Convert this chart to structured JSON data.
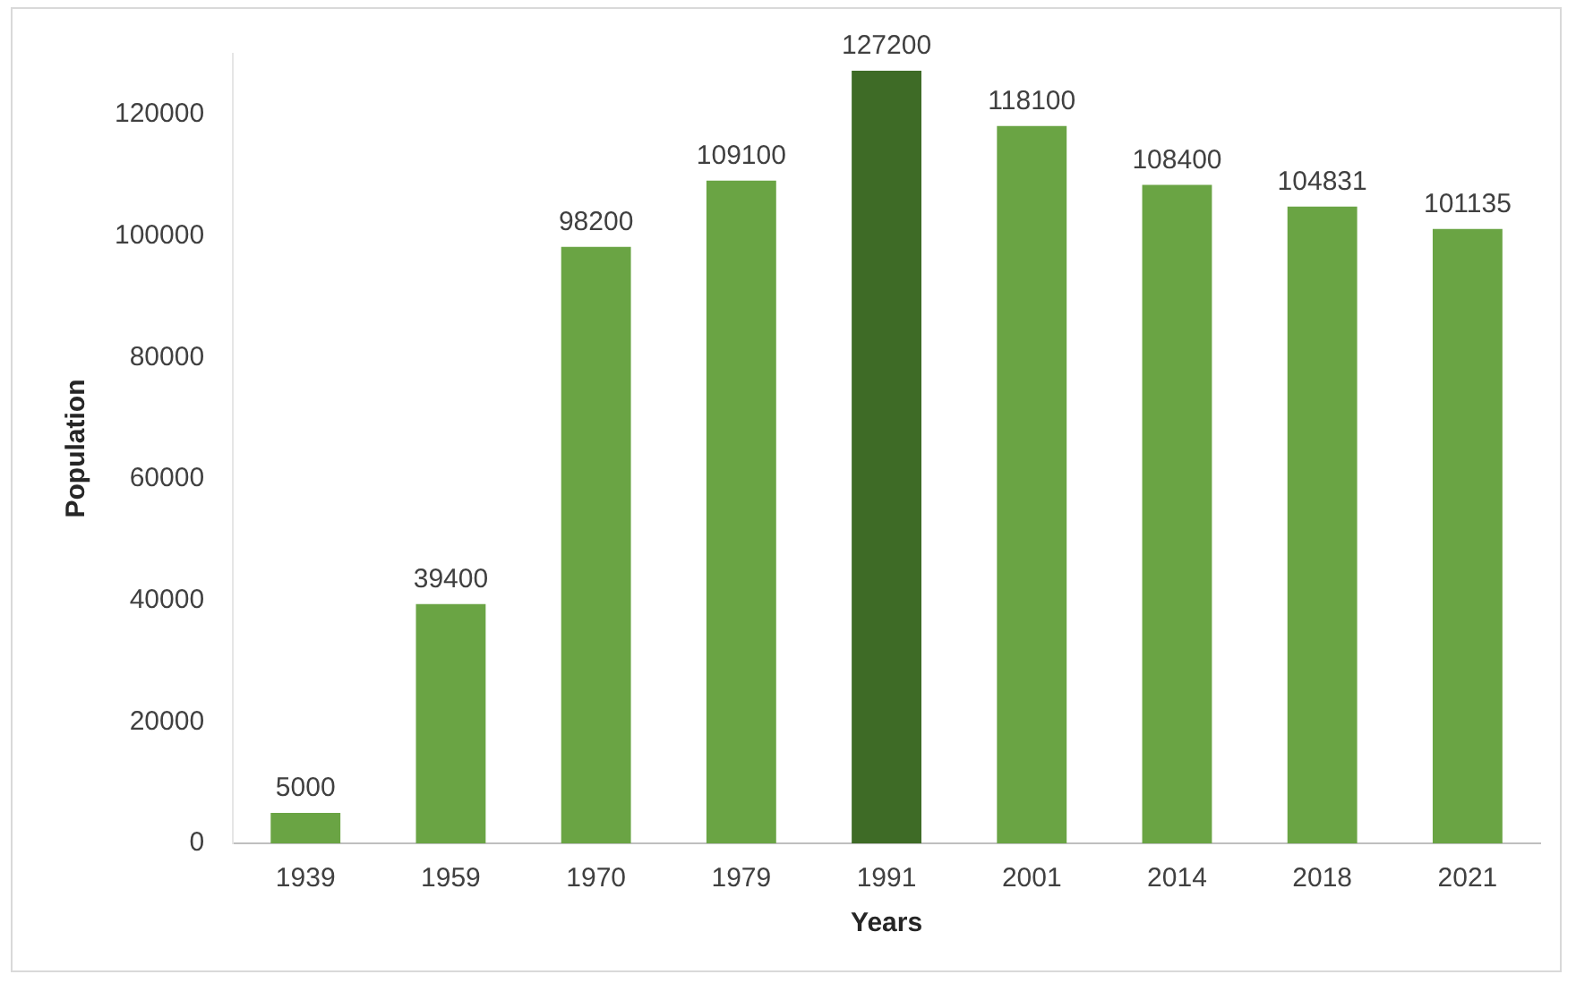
{
  "chart_data": {
    "type": "bar",
    "xlabel": "Years",
    "ylabel": "Population",
    "categories": [
      "1939",
      "1959",
      "1970",
      "1979",
      "1991",
      "2001",
      "2014",
      "2018",
      "2021"
    ],
    "values": [
      5000,
      39400,
      98200,
      109100,
      127200,
      118100,
      108400,
      104831,
      101135
    ],
    "colors": [
      "#6aa444",
      "#6aa444",
      "#6aa444",
      "#6aa444",
      "#3e6b26",
      "#6aa444",
      "#6aa444",
      "#6aa444",
      "#6aa444"
    ],
    "ylim": [
      0,
      130000
    ],
    "yticks": [
      0,
      20000,
      40000,
      60000,
      80000,
      100000,
      120000
    ],
    "grid": false,
    "legend": false,
    "data_labels": true
  }
}
